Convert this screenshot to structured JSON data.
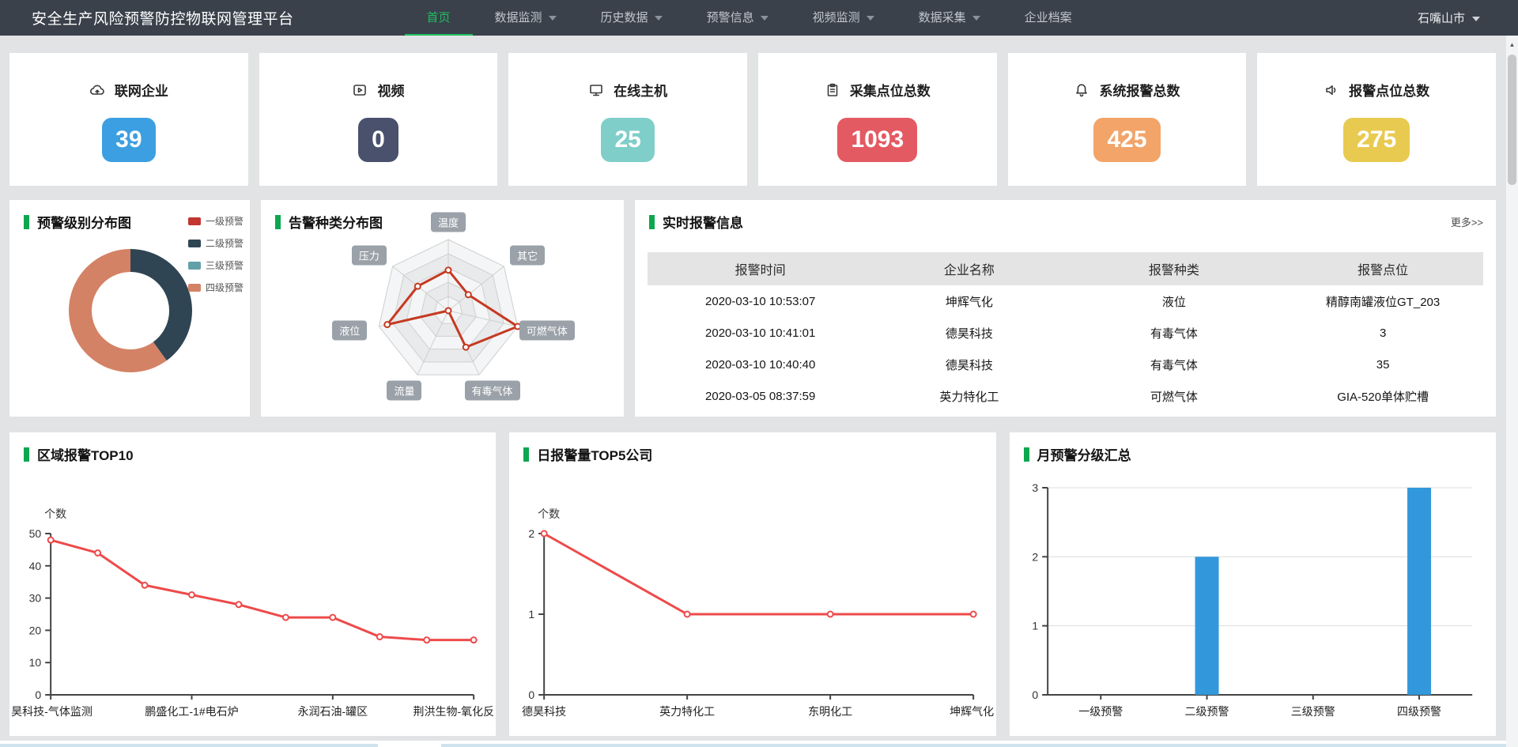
{
  "nav": {
    "title": "安全生产风险预警防控物联网管理平台",
    "items": [
      {
        "label": "首页",
        "active": true,
        "caret": false
      },
      {
        "label": "数据监测",
        "active": false,
        "caret": true
      },
      {
        "label": "历史数据",
        "active": false,
        "caret": true
      },
      {
        "label": "预警信息",
        "active": false,
        "caret": true
      },
      {
        "label": "视频监测",
        "active": false,
        "caret": true
      },
      {
        "label": "数据采集",
        "active": false,
        "caret": true
      },
      {
        "label": "企业档案",
        "active": false,
        "caret": false
      }
    ],
    "region": "石嘴山市"
  },
  "stats": [
    {
      "label": "联网企业",
      "value": "39",
      "color": "#3c9fe1",
      "icon": "cloud-upload-icon"
    },
    {
      "label": "视频",
      "value": "0",
      "color": "#4a516d",
      "icon": "video-play-icon"
    },
    {
      "label": "在线主机",
      "value": "25",
      "color": "#7fceca",
      "icon": "monitor-icon"
    },
    {
      "label": "采集点位总数",
      "value": "1093",
      "color": "#e45a62",
      "icon": "clipboard-icon"
    },
    {
      "label": "系统报警总数",
      "value": "425",
      "color": "#f2a469",
      "icon": "bell-icon"
    },
    {
      "label": "报警点位总数",
      "value": "275",
      "color": "#e9ca50",
      "icon": "speaker-icon"
    }
  ],
  "alarm_table": {
    "title": "实时报警信息",
    "more_label": "更多>>",
    "headers": [
      "报警时间",
      "企业名称",
      "报警种类",
      "报警点位"
    ],
    "rows": [
      [
        "2020-03-10 10:53:07",
        "坤辉气化",
        "液位",
        "精醇南罐液位GT_203"
      ],
      [
        "2020-03-10 10:41:01",
        "德昊科技",
        "有毒气体",
        "3"
      ],
      [
        "2020-03-10 10:40:40",
        "德昊科技",
        "有毒气体",
        "35"
      ],
      [
        "2020-03-05 08:37:59",
        "英力特化工",
        "可燃气体",
        "GIA-520单体贮槽"
      ]
    ]
  },
  "chart_data": [
    {
      "type": "pie",
      "variant": "donut",
      "title": "预警级别分布图",
      "labels": [
        "一级预警",
        "二级预警",
        "三级预警",
        "四级预警"
      ],
      "values": [
        0,
        2,
        0,
        3
      ],
      "colors": [
        "#c23531",
        "#2f4554",
        "#61a0a8",
        "#d48265"
      ],
      "legend_position": "right"
    },
    {
      "type": "radar",
      "title": "告警种类分布图",
      "axes": [
        "温度",
        "其它",
        "可燃气体",
        "有毒气体",
        "流量",
        "液位",
        "压力"
      ],
      "values": [
        57,
        36,
        100,
        57,
        0,
        88,
        55
      ],
      "max": 100,
      "levels": 5,
      "line_color": "#c53a22"
    },
    {
      "type": "line",
      "title": "区域报警TOP10",
      "ylabel": "个数",
      "values": [
        48,
        44,
        34,
        31,
        28,
        24,
        24,
        18,
        17,
        17
      ],
      "x_labels": [
        "昊科技-气体监测",
        "鹏盛化工-1#电石炉",
        "永润石油-罐区",
        "荆洪生物-氧化反"
      ],
      "label_indices": [
        0,
        3,
        6,
        9
      ],
      "yticks": [
        0,
        10,
        20,
        30,
        40,
        50
      ],
      "ylim": [
        0,
        50
      ],
      "line_color": "#ee4a4a",
      "grid": false
    },
    {
      "type": "line",
      "title": "日报警量TOP5公司",
      "ylabel": "个数",
      "values": [
        2,
        1,
        1,
        1
      ],
      "x_labels": [
        "德昊科技",
        "英力特化工",
        "东明化工",
        "坤辉气化"
      ],
      "label_indices": [
        0,
        1,
        2,
        3
      ],
      "yticks": [
        0,
        1,
        2
      ],
      "ylim": [
        0,
        2
      ],
      "line_color": "#ee4a4a",
      "grid": false
    },
    {
      "type": "bar",
      "title": "月预警分级汇总",
      "categories": [
        "一级预警",
        "二级预警",
        "三级预警",
        "四级预警"
      ],
      "values": [
        0,
        2,
        0,
        3
      ],
      "yticks": [
        0,
        1,
        2,
        3
      ],
      "ylim": [
        0,
        3
      ],
      "bar_color": "#3398db",
      "grid": true
    }
  ],
  "colors": {
    "nav_bg": "#3a414b",
    "nav_active_green": "#1dc05f",
    "accent_green_bar": "#0ca750",
    "table_header_bg": "#e4e4e5",
    "page_bg": "#e2e3e4",
    "footer_strip_blue": "#cfe3ee"
  }
}
